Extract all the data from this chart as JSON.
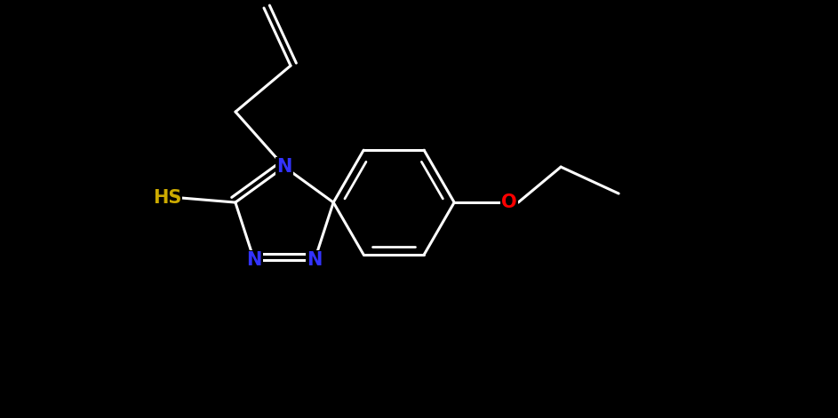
{
  "background_color": "#000000",
  "bond_color": "#ffffff",
  "bond_width": 2.2,
  "atom_colors": {
    "N": "#3333ff",
    "O": "#ff0000",
    "S": "#ccaa00"
  },
  "font_size": 15,
  "fig_width": 9.43,
  "fig_height": 4.71,
  "xlim": [
    0,
    9.43
  ],
  "ylim": [
    0,
    4.71
  ]
}
